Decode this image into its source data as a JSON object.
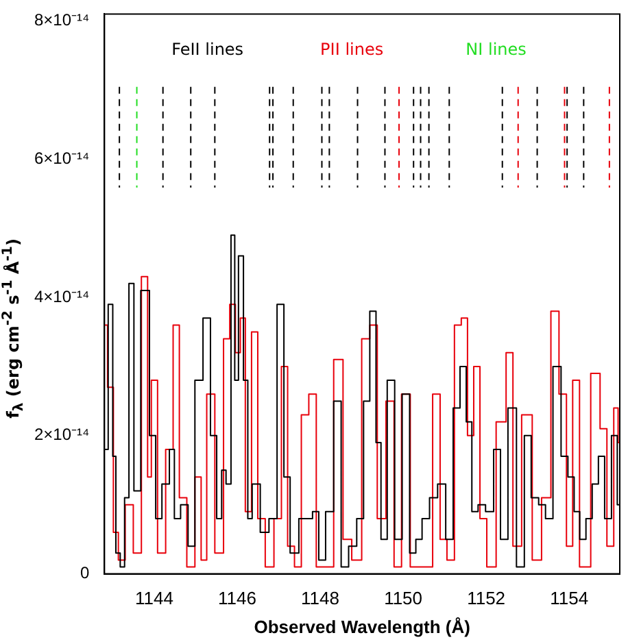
{
  "chart_data": {
    "type": "step",
    "xlabel": "Observed Wavelength (Å)",
    "ylabel": "f$_{λ}$ (erg cm$^{-2}$ s$^{-1}$ Å$^{-1}$)",
    "xlim": [
      1142.8,
      1155.22
    ],
    "xticks": [
      1144,
      1146,
      1148,
      1150,
      1152,
      1154
    ],
    "ylim": [
      0,
      8.1e-14
    ],
    "yticks": [
      0,
      {
        "value": 2e-14,
        "label": "2×10⁻¹⁴"
      },
      {
        "value": 4e-14,
        "label": "4×10⁻¹⁴"
      },
      {
        "value": 6e-14,
        "label": "6×10⁻¹⁴"
      },
      {
        "value": 8e-14,
        "label": "8×10⁻¹⁴"
      }
    ],
    "grid": false,
    "legend": false,
    "series": [
      {
        "color": "#000000",
        "x": [
          1142.81,
          1142.97,
          1143.03,
          1143.12,
          1143.24,
          1143.33,
          1143.45,
          1143.57,
          1143.78,
          1143.99,
          1144.08,
          1144.29,
          1144.44,
          1144.53,
          1144.74,
          1144.89,
          1145.07,
          1145.28,
          1145.43,
          1145.58,
          1145.67,
          1145.79,
          1145.91,
          1145.97,
          1146.09,
          1146.21,
          1146.3,
          1146.42,
          1146.69,
          1146.84,
          1147.08,
          1147.17,
          1147.38,
          1147.59,
          1147.74,
          1147.89,
          1148.04,
          1148.22,
          1148.43,
          1148.58,
          1148.79,
          1148.97,
          1149.12,
          1149.27,
          1149.42,
          1149.51,
          1149.72,
          1149.87,
          1150.08,
          1150.23,
          1150.38,
          1150.53,
          1150.74,
          1150.92,
          1151.13,
          1151.28,
          1151.46,
          1151.58,
          1151.73,
          1151.88,
          1152.09,
          1152.27,
          1152.42,
          1152.63,
          1152.83,
          1153.01,
          1153.16,
          1153.37,
          1153.49,
          1153.73,
          1153.88,
          1154.06,
          1154.18,
          1154.33,
          1154.48,
          1154.63,
          1154.78,
          1154.93,
          1155.11,
          1155.21
        ],
        "values": [
          1.8e-14,
          3.9e-14,
          1.7e-14,
          3e-15,
          1e-15,
          1.1e-14,
          4.2e-14,
          1.2e-14,
          4.1e-14,
          2e-14,
          8e-15,
          1.3e-14,
          1.8e-14,
          8e-15,
          1e-14,
          4e-15,
          2.8e-14,
          3.7e-14,
          2e-14,
          8e-15,
          1.5e-14,
          1.3e-14,
          4.9e-14,
          2.8e-14,
          4.6e-14,
          2.8e-14,
          8e-15,
          1.3e-14,
          6e-15,
          8e-15,
          3.9e-14,
          1.4e-14,
          3e-15,
          8e-15,
          8e-15,
          9e-15,
          2e-15,
          9e-15,
          2.5e-14,
          1e-15,
          4e-15,
          8e-15,
          2.5e-14,
          3.8e-14,
          1.9e-14,
          5e-15,
          2.8e-14,
          5e-15,
          2.6e-14,
          3e-15,
          5e-15,
          8e-15,
          1.1e-14,
          1.3e-14,
          5e-15,
          2.4e-14,
          3e-14,
          2.2e-14,
          9e-15,
          1e-14,
          9e-15,
          1.8e-14,
          5e-15,
          2.4e-14,
          1e-15,
          2e-14,
          1.1e-14,
          1e-14,
          8e-15,
          3e-14,
          1.7e-14,
          1.4e-14,
          9e-15,
          5e-15,
          8e-15,
          1.3e-14,
          1.7e-14,
          8e-15,
          2e-14,
          1e-14
        ]
      },
      {
        "color": "#e8000b",
        "x": [
          1142.81,
          1142.94,
          1143.09,
          1143.18,
          1143.42,
          1143.57,
          1143.81,
          1143.87,
          1143.99,
          1144.17,
          1144.38,
          1144.53,
          1144.68,
          1144.89,
          1145.07,
          1145.19,
          1145.34,
          1145.58,
          1145.76,
          1145.88,
          1146.03,
          1146.12,
          1146.27,
          1146.42,
          1146.57,
          1146.78,
          1146.99,
          1147.14,
          1147.29,
          1147.47,
          1147.62,
          1147.83,
          1147.98,
          1148.19,
          1148.46,
          1148.64,
          1148.88,
          1149.12,
          1149.27,
          1149.48,
          1149.69,
          1149.87,
          1150.05,
          1150.29,
          1150.62,
          1150.8,
          1150.98,
          1151.13,
          1151.34,
          1151.46,
          1151.64,
          1151.76,
          1151.94,
          1152.09,
          1152.39,
          1152.57,
          1152.72,
          1152.99,
          1153.23,
          1153.44,
          1153.68,
          1153.83,
          1154.04,
          1154.13,
          1154.37,
          1154.67,
          1154.82,
          1155.0,
          1155.15,
          1155.21
        ],
        "values": [
          3.6e-14,
          2.7e-14,
          6e-15,
          2e-15,
          1e-14,
          3e-15,
          4.3e-14,
          1.4e-14,
          2.8e-14,
          3e-15,
          1.8e-14,
          3.6e-14,
          1.1e-14,
          1e-15,
          1.4e-14,
          2e-15,
          2.6e-14,
          3e-15,
          3.4e-14,
          3.9e-14,
          3.2e-14,
          3.7e-14,
          9e-15,
          3.5e-14,
          8e-15,
          1e-15,
          8e-15,
          3e-14,
          4e-15,
          1e-15,
          2.3e-14,
          2.6e-14,
          1e-15,
          1e-15,
          3.1e-14,
          5e-15,
          2e-15,
          3.4e-14,
          3.6e-14,
          8e-15,
          2.5e-14,
          1e-15,
          2.6e-14,
          1e-15,
          1e-15,
          2.6e-14,
          5e-15,
          2e-15,
          3.6e-14,
          3.7e-14,
          2e-14,
          3e-14,
          8e-15,
          1e-15,
          2.2e-14,
          3.2e-14,
          4e-15,
          2.3e-14,
          2e-15,
          1.1e-14,
          3.8e-14,
          2.6e-14,
          4e-15,
          2.8e-14,
          1e-15,
          2.9e-14,
          2.1e-14,
          4e-15,
          2.4e-14,
          1.9e-14
        ]
      }
    ],
    "ref_lines": [
      {
        "axis": "x",
        "value": 1143.16,
        "color": "#000000",
        "line_style": "dashed"
      },
      {
        "axis": "x",
        "value": 1144.21,
        "color": "#000000",
        "line_style": "dashed"
      },
      {
        "axis": "x",
        "value": 1144.88,
        "color": "#000000",
        "line_style": "dashed"
      },
      {
        "axis": "x",
        "value": 1145.46,
        "color": "#000000",
        "line_style": "dashed"
      },
      {
        "axis": "x",
        "value": 1146.78,
        "color": "#000000",
        "line_style": "dashed"
      },
      {
        "axis": "x",
        "value": 1146.86,
        "color": "#000000",
        "line_style": "dashed"
      },
      {
        "axis": "x",
        "value": 1147.35,
        "color": "#000000",
        "line_style": "dashed"
      },
      {
        "axis": "x",
        "value": 1148.04,
        "color": "#000000",
        "line_style": "dashed"
      },
      {
        "axis": "x",
        "value": 1148.22,
        "color": "#000000",
        "line_style": "dashed"
      },
      {
        "axis": "x",
        "value": 1148.9,
        "color": "#000000",
        "line_style": "dashed"
      },
      {
        "axis": "x",
        "value": 1149.56,
        "color": "#000000",
        "line_style": "dashed"
      },
      {
        "axis": "x",
        "value": 1150.25,
        "color": "#000000",
        "line_style": "dashed"
      },
      {
        "axis": "x",
        "value": 1150.42,
        "color": "#000000",
        "line_style": "dashed"
      },
      {
        "axis": "x",
        "value": 1150.62,
        "color": "#000000",
        "line_style": "dashed"
      },
      {
        "axis": "x",
        "value": 1151.11,
        "color": "#000000",
        "line_style": "dashed"
      },
      {
        "axis": "x",
        "value": 1152.39,
        "color": "#000000",
        "line_style": "dashed"
      },
      {
        "axis": "x",
        "value": 1153.23,
        "color": "#000000",
        "line_style": "dashed"
      },
      {
        "axis": "x",
        "value": 1153.95,
        "color": "#000000",
        "line_style": "dashed"
      },
      {
        "axis": "x",
        "value": 1154.35,
        "color": "#000000",
        "line_style": "dashed"
      },
      {
        "axis": "x",
        "value": 1149.9,
        "color": "#e8000b",
        "line_style": "dashed"
      },
      {
        "axis": "x",
        "value": 1152.77,
        "color": "#e8000b",
        "line_style": "dashed"
      },
      {
        "axis": "x",
        "value": 1153.89,
        "color": "#e8000b",
        "line_style": "dashed"
      },
      {
        "axis": "x",
        "value": 1154.97,
        "color": "#e8000b",
        "line_style": "dashed"
      },
      {
        "axis": "x",
        "value": 1143.58,
        "color": "#22dd22",
        "line_style": "dashed"
      }
    ],
    "annotations": [
      "FeII lines",
      "PII lines",
      "NI lines"
    ]
  }
}
